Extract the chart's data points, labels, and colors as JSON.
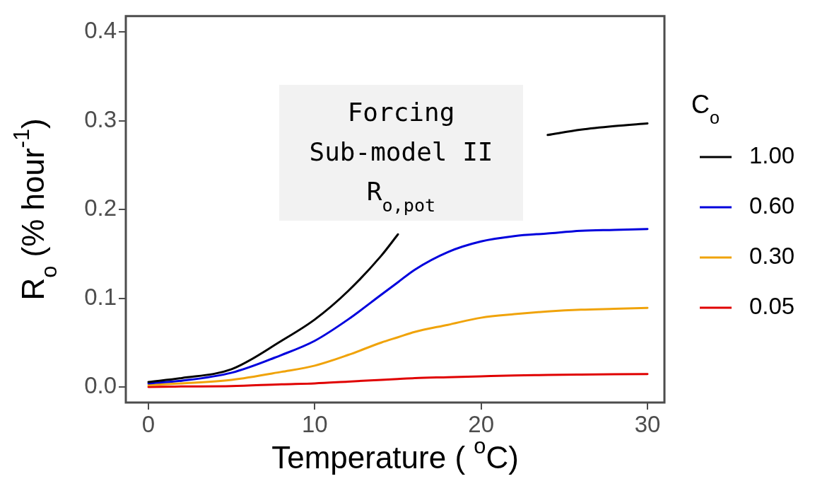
{
  "chart_data": {
    "type": "line",
    "xlabel": "Temperature ( $^{o}$C)",
    "ylabel": "R$_{o}$ (% hour$^{-1}$)",
    "legend_title": "C$_{o}$",
    "x": [
      0,
      2,
      5,
      8,
      10,
      12,
      14,
      15,
      16,
      18,
      20,
      22,
      24,
      26,
      28,
      30
    ],
    "series": [
      {
        "name": "1.00",
        "color": "#000000",
        "values": [
          0.0056,
          0.01,
          0.02,
          0.052,
          0.076,
          0.108,
          0.148,
          0.172,
          null,
          null,
          null,
          null,
          0.284,
          0.29,
          0.294,
          0.297
        ]
      },
      {
        "name": "0.60",
        "color": "#0000dd",
        "values": [
          0.004,
          0.007,
          0.016,
          0.036,
          0.052,
          0.076,
          0.104,
          0.118,
          0.132,
          0.152,
          0.164,
          0.17,
          0.173,
          0.176,
          0.177,
          0.178
        ]
      },
      {
        "name": "0.30",
        "color": "#f0a30a",
        "values": [
          0.002,
          0.004,
          0.008,
          0.017,
          0.024,
          0.036,
          0.05,
          0.056,
          0.062,
          0.07,
          0.078,
          0.082,
          0.085,
          0.087,
          0.088,
          0.089
        ]
      },
      {
        "name": "0.05",
        "color": "#e00000",
        "values": [
          0.0,
          0.0005,
          0.001,
          0.003,
          0.004,
          0.006,
          0.008,
          0.009,
          0.01,
          0.011,
          0.012,
          0.013,
          0.0135,
          0.014,
          0.0143,
          0.0145
        ]
      }
    ],
    "xlim": [
      -1.36,
      31.02
    ],
    "ylim": [
      -0.0176,
      0.418
    ],
    "xticks": [
      0,
      10,
      20,
      30
    ],
    "yticks": [
      {
        "value": 0,
        "label": "0.0"
      },
      0.1,
      0.2,
      0.3,
      0.4
    ],
    "grid": false,
    "legend": "right",
    "marker": "none",
    "line_style": "solid",
    "annotations": [
      "Forcing\nSub-model II\nR$_{o,pot}$"
    ]
  }
}
